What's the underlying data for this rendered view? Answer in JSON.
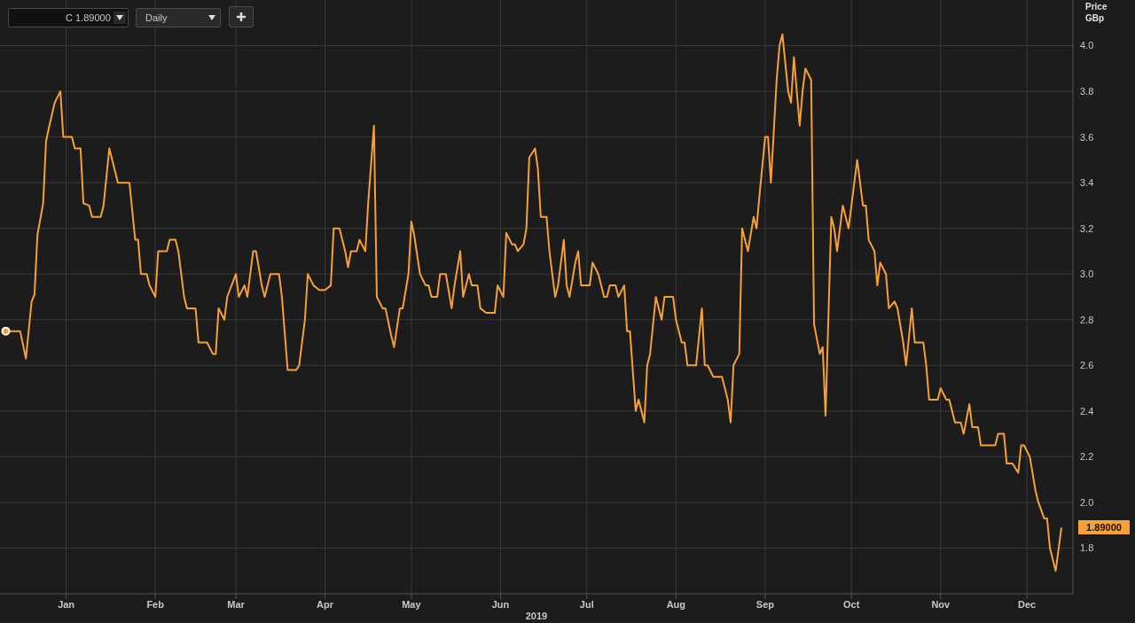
{
  "chart_data": {
    "type": "line",
    "xlabel": "2019",
    "ylabel": "Price GBp",
    "x": [
      "2018-12-11",
      "2018-12-16",
      "2018-12-18",
      "2018-12-20",
      "2018-12-21",
      "2018-12-22",
      "2018-12-24",
      "2018-12-25",
      "2018-12-26",
      "2018-12-28",
      "2018-12-30",
      "2018-12-31",
      "2019-01-03",
      "2019-01-04",
      "2019-01-06",
      "2019-01-07",
      "2019-01-09",
      "2019-01-10",
      "2019-01-13",
      "2019-01-14",
      "2019-01-16",
      "2019-01-17",
      "2019-01-19",
      "2019-01-23",
      "2019-01-25",
      "2019-01-26",
      "2019-01-27",
      "2019-01-29",
      "2019-01-30",
      "2019-02-01",
      "2019-02-02",
      "2019-02-05",
      "2019-02-06",
      "2019-02-08",
      "2019-02-09",
      "2019-02-11",
      "2019-02-12",
      "2019-02-15",
      "2019-02-16",
      "2019-02-19",
      "2019-02-21",
      "2019-02-22",
      "2019-02-23",
      "2019-02-25",
      "2019-02-26",
      "2019-03-01",
      "2019-03-02",
      "2019-03-04",
      "2019-03-05",
      "2019-03-07",
      "2019-03-08",
      "2019-03-10",
      "2019-03-11",
      "2019-03-13",
      "2019-03-16",
      "2019-03-17",
      "2019-03-19",
      "2019-03-22",
      "2019-03-23",
      "2019-03-25",
      "2019-03-26",
      "2019-03-28",
      "2019-03-30",
      "2019-04-01",
      "2019-04-03",
      "2019-04-04",
      "2019-04-06",
      "2019-04-08",
      "2019-04-09",
      "2019-04-10",
      "2019-04-12",
      "2019-04-13",
      "2019-04-15",
      "2019-04-16",
      "2019-04-18",
      "2019-04-19",
      "2019-04-21",
      "2019-04-22",
      "2019-04-24",
      "2019-04-25",
      "2019-04-27",
      "2019-04-28",
      "2019-04-30",
      "2019-05-01",
      "2019-05-02",
      "2019-05-04",
      "2019-05-06",
      "2019-05-07",
      "2019-05-08",
      "2019-05-10",
      "2019-05-11",
      "2019-05-13",
      "2019-05-15",
      "2019-05-16",
      "2019-05-18",
      "2019-05-19",
      "2019-05-21",
      "2019-05-22",
      "2019-05-24",
      "2019-05-25",
      "2019-05-27",
      "2019-05-30",
      "2019-05-31",
      "2019-06-02",
      "2019-06-03",
      "2019-06-05",
      "2019-06-06",
      "2019-06-07",
      "2019-06-09",
      "2019-06-10",
      "2019-06-11",
      "2019-06-13",
      "2019-06-14",
      "2019-06-15",
      "2019-06-17",
      "2019-06-18",
      "2019-06-20",
      "2019-06-21",
      "2019-06-23",
      "2019-06-24",
      "2019-06-25",
      "2019-06-27",
      "2019-06-28",
      "2019-06-29",
      "2019-07-02",
      "2019-07-03",
      "2019-07-05",
      "2019-07-07",
      "2019-07-08",
      "2019-07-09",
      "2019-07-11",
      "2019-07-12",
      "2019-07-14",
      "2019-07-15",
      "2019-07-16",
      "2019-07-18",
      "2019-07-19",
      "2019-07-21",
      "2019-07-22",
      "2019-07-23",
      "2019-07-25",
      "2019-07-27",
      "2019-07-28",
      "2019-07-31",
      "2019-08-01",
      "2019-08-03",
      "2019-08-04",
      "2019-08-05",
      "2019-08-08",
      "2019-08-10",
      "2019-08-11",
      "2019-08-12",
      "2019-08-14",
      "2019-08-17",
      "2019-08-19",
      "2019-08-20",
      "2019-08-21",
      "2019-08-23",
      "2019-08-24",
      "2019-08-26",
      "2019-08-28",
      "2019-08-29",
      "2019-08-30",
      "2019-09-01",
      "2019-09-02",
      "2019-09-03",
      "2019-09-05",
      "2019-09-06",
      "2019-09-07",
      "2019-09-09",
      "2019-09-10",
      "2019-09-11",
      "2019-09-13",
      "2019-09-14",
      "2019-09-15",
      "2019-09-17",
      "2019-09-18",
      "2019-09-20",
      "2019-09-21",
      "2019-09-22",
      "2019-09-24",
      "2019-09-25",
      "2019-09-26",
      "2019-09-28",
      "2019-09-30",
      "2019-10-02",
      "2019-10-03",
      "2019-10-05",
      "2019-10-06",
      "2019-10-07",
      "2019-10-09",
      "2019-10-10",
      "2019-10-11",
      "2019-10-13",
      "2019-10-14",
      "2019-10-16",
      "2019-10-17",
      "2019-10-19",
      "2019-10-20",
      "2019-10-22",
      "2019-10-23",
      "2019-10-26",
      "2019-10-27",
      "2019-10-28",
      "2019-10-31",
      "2019-11-01",
      "2019-11-03",
      "2019-11-04",
      "2019-11-06",
      "2019-11-08",
      "2019-11-09",
      "2019-11-11",
      "2019-11-12",
      "2019-11-14",
      "2019-11-15",
      "2019-11-20",
      "2019-11-21",
      "2019-11-23",
      "2019-11-24",
      "2019-11-26",
      "2019-11-28",
      "2019-11-29",
      "2019-11-30",
      "2019-12-02",
      "2019-12-04",
      "2019-12-05",
      "2019-12-07",
      "2019-12-08",
      "2019-12-09",
      "2019-12-11",
      "2019-12-13"
    ],
    "series": [
      {
        "color": "#f7a035",
        "values": [
          2.75,
          2.75,
          2.63,
          2.88,
          2.91,
          3.17,
          3.31,
          3.58,
          3.64,
          3.75,
          3.8,
          3.6,
          3.6,
          3.55,
          3.55,
          3.31,
          3.3,
          3.25,
          3.25,
          3.3,
          3.55,
          3.5,
          3.4,
          3.4,
          3.15,
          3.15,
          3.0,
          3.0,
          2.95,
          2.9,
          3.1,
          3.1,
          3.15,
          3.15,
          3.1,
          2.9,
          2.85,
          2.85,
          2.7,
          2.7,
          2.65,
          2.65,
          2.85,
          2.8,
          2.9,
          3.0,
          2.9,
          2.95,
          2.9,
          3.1,
          3.1,
          2.95,
          2.9,
          3.0,
          3.0,
          2.9,
          2.58,
          2.58,
          2.6,
          2.8,
          3.0,
          2.95,
          2.93,
          2.93,
          2.95,
          3.2,
          3.2,
          3.1,
          3.03,
          3.1,
          3.1,
          3.15,
          3.1,
          3.31,
          3.65,
          2.9,
          2.85,
          2.85,
          2.73,
          2.68,
          2.85,
          2.85,
          3.0,
          3.23,
          3.17,
          3.0,
          2.95,
          2.95,
          2.9,
          2.9,
          3.0,
          3.0,
          2.85,
          2.95,
          3.1,
          2.9,
          3.0,
          2.95,
          2.95,
          2.85,
          2.83,
          2.83,
          2.95,
          2.9,
          3.18,
          3.13,
          3.13,
          3.1,
          3.13,
          3.2,
          3.51,
          3.55,
          3.46,
          3.25,
          3.25,
          3.1,
          2.9,
          2.95,
          3.15,
          2.95,
          2.9,
          3.05,
          3.1,
          2.95,
          2.95,
          3.05,
          3.0,
          2.9,
          2.9,
          2.95,
          2.95,
          2.9,
          2.95,
          2.75,
          2.75,
          2.4,
          2.45,
          2.35,
          2.6,
          2.65,
          2.9,
          2.8,
          2.9,
          2.9,
          2.8,
          2.7,
          2.7,
          2.6,
          2.6,
          2.85,
          2.6,
          2.6,
          2.55,
          2.55,
          2.45,
          2.35,
          2.6,
          2.65,
          3.2,
          3.1,
          3.25,
          3.2,
          3.34,
          3.6,
          3.6,
          3.4,
          3.85,
          4.0,
          4.05,
          3.8,
          3.75,
          3.95,
          3.65,
          3.8,
          3.9,
          3.85,
          2.78,
          2.65,
          2.68,
          2.38,
          3.25,
          3.2,
          3.1,
          3.3,
          3.2,
          3.4,
          3.5,
          3.3,
          3.3,
          3.15,
          3.1,
          2.95,
          3.05,
          3.0,
          2.85,
          2.88,
          2.85,
          2.7,
          2.6,
          2.85,
          2.7,
          2.7,
          2.6,
          2.45,
          2.45,
          2.5,
          2.45,
          2.45,
          2.35,
          2.35,
          2.3,
          2.43,
          2.33,
          2.33,
          2.25,
          2.25,
          2.3,
          2.3,
          2.17,
          2.17,
          2.13,
          2.25,
          2.25,
          2.2,
          2.05,
          2.0,
          1.93,
          1.93,
          1.8,
          1.7,
          1.89
        ]
      }
    ],
    "xlim": [
      "2018-12-09",
      "2019-12-17"
    ],
    "xticks": [
      {
        "value": "2019-01-01",
        "label": "Jan"
      },
      {
        "value": "2019-02-01",
        "label": "Feb"
      },
      {
        "value": "2019-03-01",
        "label": "Mar"
      },
      {
        "value": "2019-04-01",
        "label": "Apr"
      },
      {
        "value": "2019-05-01",
        "label": "May"
      },
      {
        "value": "2019-06-01",
        "label": "Jun"
      },
      {
        "value": "2019-07-01",
        "label": "Jul"
      },
      {
        "value": "2019-08-01",
        "label": "Aug"
      },
      {
        "value": "2019-09-01",
        "label": "Sep"
      },
      {
        "value": "2019-10-01",
        "label": "Oct"
      },
      {
        "value": "2019-11-01",
        "label": "Nov"
      },
      {
        "value": "2019-12-01",
        "label": "Dec"
      }
    ],
    "ylim": [
      1.6,
      4.2
    ],
    "yticks": [
      {
        "value": 1.8,
        "label": "1.8"
      },
      {
        "value": 2,
        "label": "2.0"
      },
      {
        "value": 2.2,
        "label": "2.2"
      },
      {
        "value": 2.4,
        "label": "2.4"
      },
      {
        "value": 2.6,
        "label": "2.6"
      },
      {
        "value": 2.8,
        "label": "2.8"
      },
      {
        "value": 3,
        "label": "3.0"
      },
      {
        "value": 3.2,
        "label": "3.2"
      },
      {
        "value": 3.4,
        "label": "3.4"
      },
      {
        "value": 3.6,
        "label": "3.6"
      },
      {
        "value": 3.8,
        "label": "3.8"
      },
      {
        "value": 4,
        "label": "4.0"
      }
    ],
    "grid": true,
    "marker": "none",
    "annotations": [
      "C 1.89000",
      "Daily",
      "1.89000"
    ]
  }
}
